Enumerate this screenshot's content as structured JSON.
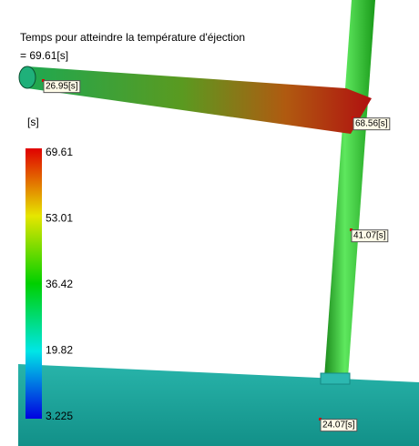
{
  "header": {
    "title": "Temps pour atteindre la température d'éjection",
    "max_value": "= 69.61[s]"
  },
  "legend": {
    "unit": "[s]",
    "ticks": [
      "69.61",
      "53.01",
      "36.42",
      "19.82",
      "3.225"
    ]
  },
  "probes": [
    {
      "label": "26.95[s]"
    },
    {
      "label": "68.56[s]"
    },
    {
      "label": "41.07[s]"
    },
    {
      "label": "24.07[s]"
    }
  ]
}
